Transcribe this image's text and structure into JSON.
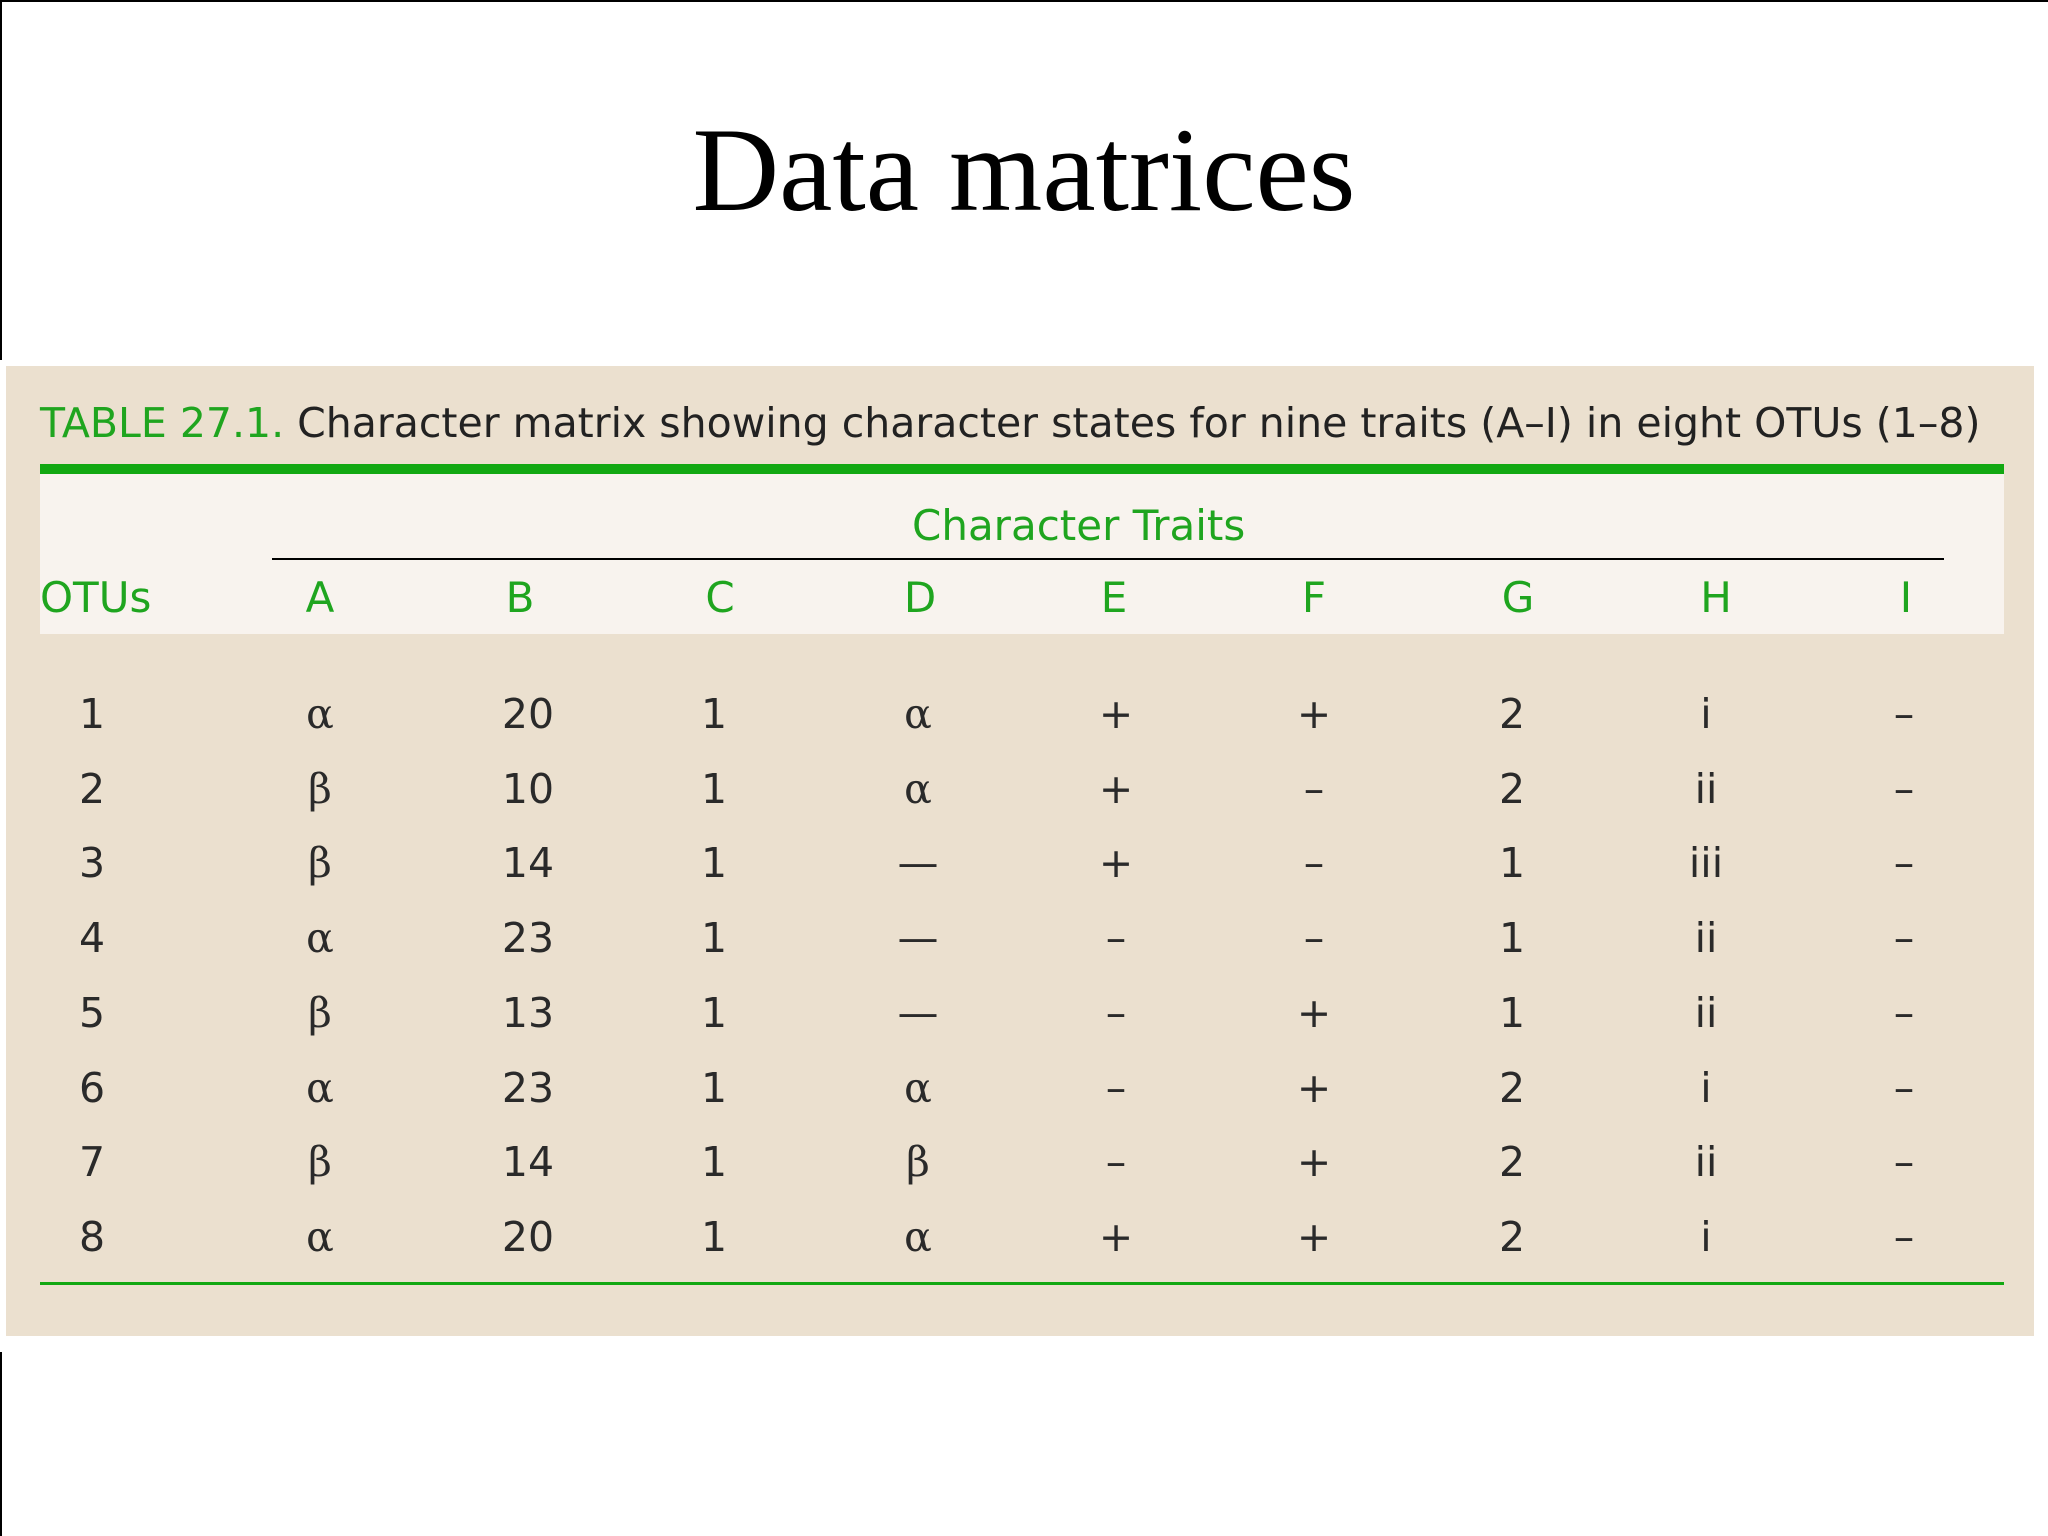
{
  "slide": {
    "title": "Data matrices"
  },
  "table": {
    "caption_label": "TABLE 27.1.",
    "caption_text": " Character matrix showing character states for nine traits (A–I) in eight OTUs (1–8)",
    "group_header": "Character Traits",
    "columns": [
      "OTUs",
      "A",
      "B",
      "C",
      "D",
      "E",
      "F",
      "G",
      "H",
      "I"
    ],
    "rows": [
      [
        "1",
        "α",
        "20",
        "1",
        "α",
        "+",
        "+",
        "2",
        "i",
        "–"
      ],
      [
        "2",
        "β",
        "10",
        "1",
        "α",
        "+",
        "–",
        "2",
        "ii",
        "–"
      ],
      [
        "3",
        "β",
        "14",
        "1",
        "—",
        "+",
        "–",
        "1",
        "iii",
        "–"
      ],
      [
        "4",
        "α",
        "23",
        "1",
        "—",
        "–",
        "–",
        "1",
        "ii",
        "–"
      ],
      [
        "5",
        "β",
        "13",
        "1",
        "—",
        "–",
        "+",
        "1",
        "ii",
        "–"
      ],
      [
        "6",
        "α",
        "23",
        "1",
        "α",
        "–",
        "+",
        "2",
        "i",
        "–"
      ],
      [
        "7",
        "β",
        "14",
        "1",
        "β",
        "–",
        "+",
        "2",
        "ii",
        "–"
      ],
      [
        "8",
        "α",
        "20",
        "1",
        "α",
        "+",
        "+",
        "2",
        "i",
        "–"
      ]
    ],
    "colors": {
      "accent_green": "#1fa51f",
      "panel_background": "#ebe0cf",
      "header_background": "#f8f3ee"
    }
  }
}
